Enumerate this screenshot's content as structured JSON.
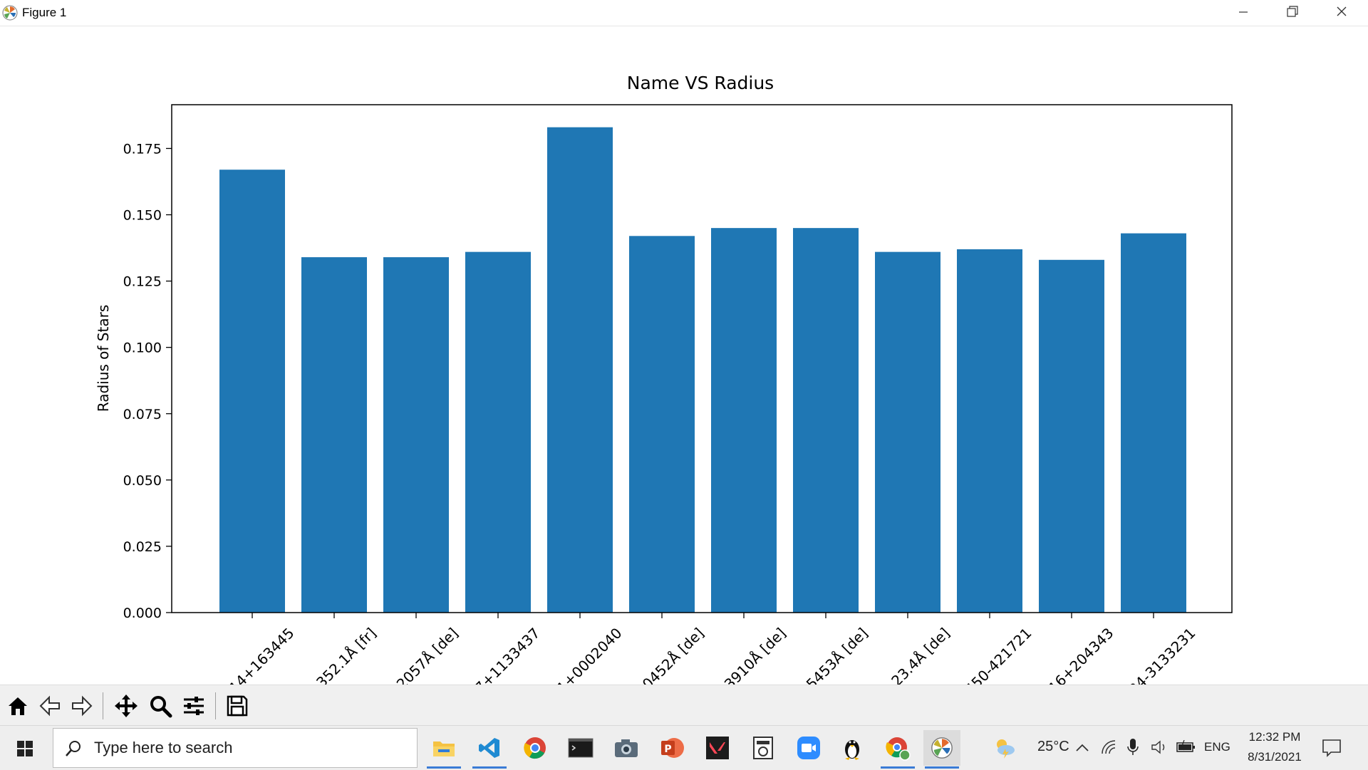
{
  "window": {
    "title": "Figure 1"
  },
  "chart_data": {
    "type": "bar",
    "title": "Name VS Radius",
    "xlabel": "",
    "ylabel": "Radius of Stars",
    "ylim": [
      0,
      0.1915
    ],
    "yticks": [
      "0.000",
      "0.025",
      "0.050",
      "0.075",
      "0.100",
      "0.125",
      "0.150",
      "0.175"
    ],
    "categories": [
      "…14+163445",
      "…352.1Å [fr]",
      "…2057Å [de]",
      "…7+1133437",
      "…1+0002040",
      "…0452Å [de]",
      "…3910Å [de]",
      "…5453Å [de]",
      "…23.4Å [de]",
      "…450-421721",
      "…16+204343",
      "…34-3133231"
    ],
    "values": [
      0.167,
      0.134,
      0.134,
      0.136,
      0.183,
      0.142,
      0.145,
      0.145,
      0.136,
      0.137,
      0.133,
      0.143
    ],
    "bar_color": "#1f77b4",
    "grid": false
  },
  "toolbar": {
    "icons": [
      "home-icon",
      "back-icon",
      "forward-icon",
      "pan-icon",
      "zoom-icon",
      "configure-icon",
      "save-icon"
    ]
  },
  "taskbar": {
    "search_placeholder": "Type here to search",
    "temperature": "25°C",
    "language": "ENG",
    "time": "12:32 PM",
    "date": "8/31/2021"
  }
}
